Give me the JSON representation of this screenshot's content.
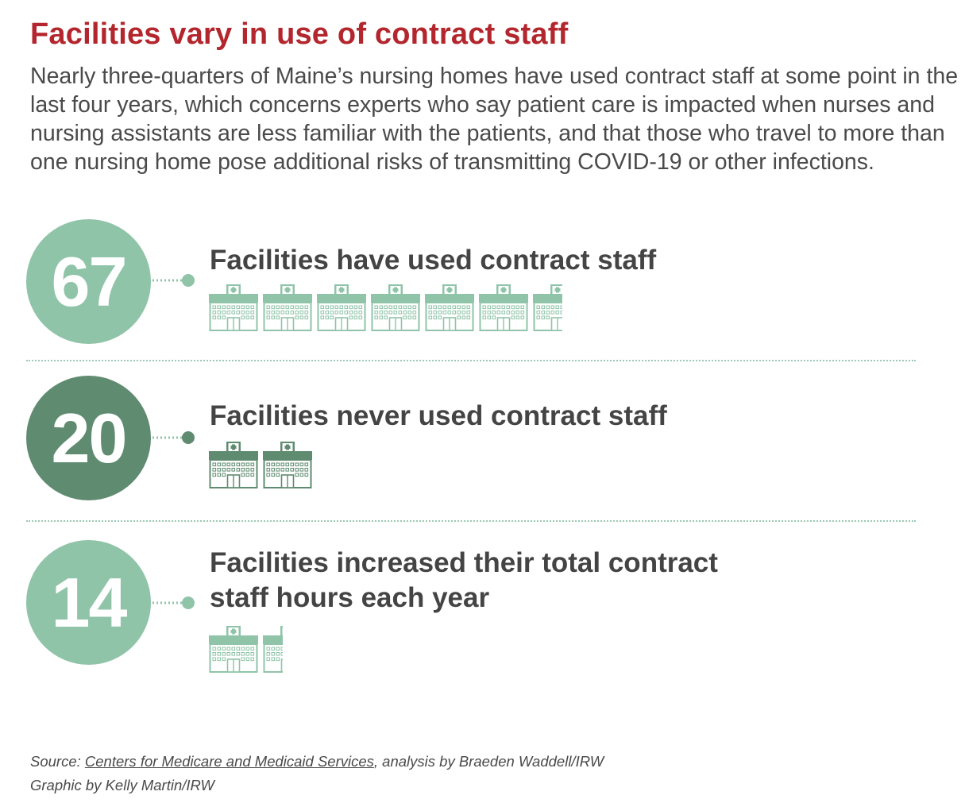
{
  "header": {
    "title": "Facilities vary in use of contract staff",
    "subtitle": "Nearly three-quarters of Maine’s nursing homes have used contract staff at some point in the last four years, which concerns experts who say patient care is impacted when nurses and nursing assistants are less familiar with the patients, and that those who travel to more than one nursing home pose additional risks of transmitting COVID-19 or other infections."
  },
  "chart_data": {
    "type": "pictograph",
    "items": [
      {
        "value": 67,
        "label": "Facilities have used contract staff",
        "icon": "nursing-home-icon",
        "icons_shown": 6.6,
        "color": "#8fc4a9"
      },
      {
        "value": 20,
        "label": "Facilities never used contract staff",
        "icon": "nursing-home-icon",
        "icons_shown": 2,
        "color": "#5f8b70"
      },
      {
        "value": 14,
        "label": "Facilities increased their total contract staff hours each year",
        "icon": "nursing-home-icon",
        "icons_shown": 1.4,
        "color": "#8fc4a9"
      }
    ]
  },
  "footer": {
    "source_prefix": "Source: ",
    "source_link": "Centers for Medicare and Medicaid Services",
    "source_suffix": ", analysis by Braeden Waddell/IRW",
    "credit": "Graphic by Kelly Martin/IRW"
  },
  "colors": {
    "title": "#b3262d",
    "text": "#444444",
    "accent_light": "#8fc4a9",
    "accent_dark": "#5f8b70"
  }
}
